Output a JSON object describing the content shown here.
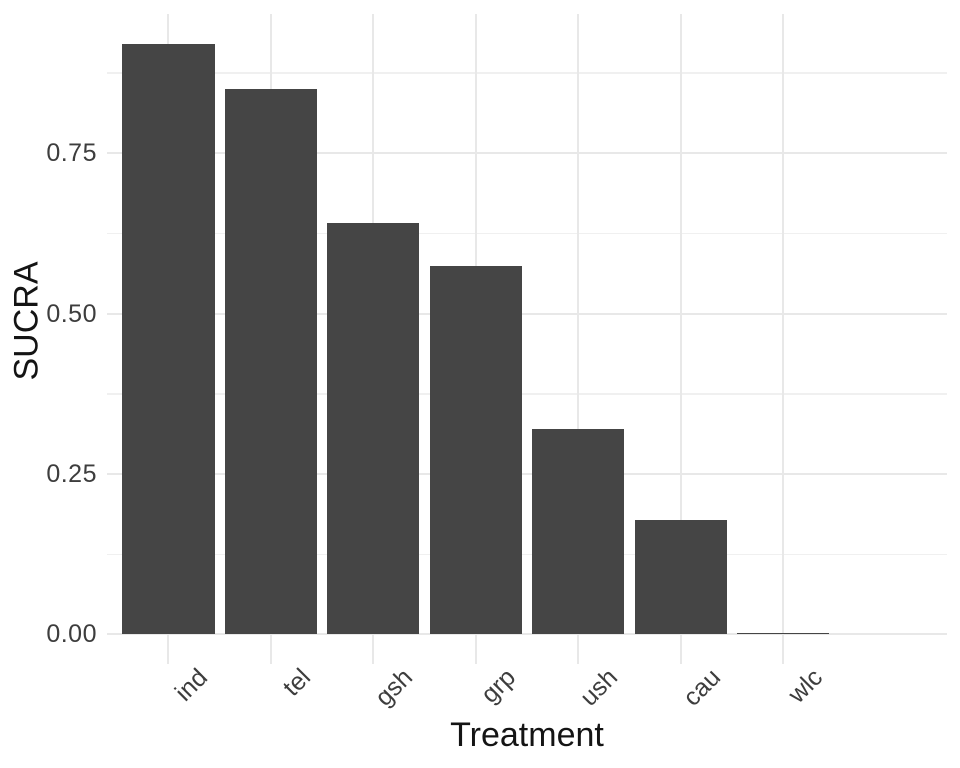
{
  "chart_data": {
    "type": "bar",
    "title": "",
    "xlabel": "Treatment",
    "ylabel": "SUCRA",
    "categories": [
      "ind",
      "tel",
      "gsh",
      "grp",
      "ush",
      "cau",
      "wlc"
    ],
    "values": [
      0.921,
      0.85,
      0.642,
      0.575,
      0.321,
      0.179,
      0.002
    ],
    "y_axis": {
      "tick_values": [
        0,
        0.25,
        0.5,
        0.75
      ],
      "tick_labels": [
        "0.00",
        "0.25",
        "0.50",
        "0.75"
      ],
      "minor_tick_values": [
        0.125,
        0.375,
        0.625,
        0.875
      ],
      "range": [
        -0.046,
        0.967
      ]
    },
    "x_tick_angle": 45,
    "bar_rel_width": 0.9,
    "grid": "major+minor",
    "legend": "none",
    "colors": {
      "bar_fill": "#454545",
      "grid_major": "#e8e8e8",
      "grid_minor": "#f0f0f0",
      "axis_text": "#3d3d3d",
      "axis_title": "#141414",
      "background": "#ffffff"
    }
  }
}
